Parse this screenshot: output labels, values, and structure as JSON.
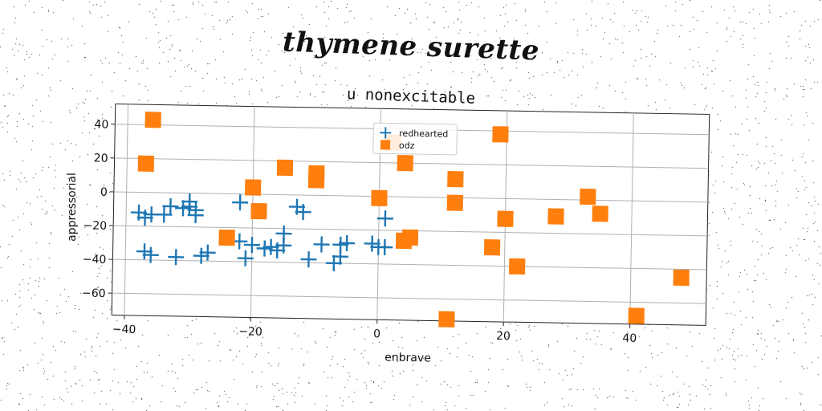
{
  "figure": {
    "suptitle": "thymene surette"
  },
  "chart_data": {
    "type": "scatter",
    "title": "u nonexcitable",
    "xlabel": "enbrave",
    "ylabel": "appressorial",
    "xlim": [
      -42,
      52
    ],
    "ylim": [
      -73,
      52
    ],
    "xticks": [
      -40,
      -20,
      0,
      20,
      40
    ],
    "yticks": [
      -60,
      -40,
      -20,
      0,
      20,
      40
    ],
    "grid": true,
    "legend_position": "top-center",
    "series": [
      {
        "name": "redhearted",
        "marker": "plus",
        "color": "#1f77b4",
        "points": [
          [
            -38,
            -12
          ],
          [
            -37,
            -15
          ],
          [
            -36,
            -13
          ],
          [
            -37,
            -35
          ],
          [
            -36,
            -37
          ],
          [
            -34,
            -13
          ],
          [
            -33,
            -8
          ],
          [
            -32,
            -38
          ],
          [
            -31,
            -9
          ],
          [
            -30,
            -8
          ],
          [
            -30,
            -5
          ],
          [
            -29,
            -10
          ],
          [
            -29,
            -13
          ],
          [
            -28,
            -37
          ],
          [
            -27,
            -35
          ],
          [
            -22,
            -28
          ],
          [
            -22,
            -5
          ],
          [
            -21,
            -38
          ],
          [
            -20,
            -30
          ],
          [
            -18,
            -32
          ],
          [
            -17,
            -31
          ],
          [
            -16,
            -33
          ],
          [
            -15,
            -30
          ],
          [
            -15,
            -23
          ],
          [
            -13,
            -7
          ],
          [
            -12,
            -10
          ],
          [
            -11,
            -38
          ],
          [
            -9,
            -29
          ],
          [
            -7,
            -40
          ],
          [
            -6,
            -36
          ],
          [
            -6,
            -29
          ],
          [
            -5,
            -28
          ],
          [
            -1,
            -28
          ],
          [
            0,
            -30
          ],
          [
            1,
            -13
          ],
          [
            1,
            -30
          ]
        ]
      },
      {
        "name": "odz",
        "marker": "square",
        "color": "#ff7f0e",
        "points": [
          [
            -36,
            43
          ],
          [
            -37,
            17
          ],
          [
            -20,
            4
          ],
          [
            -19,
            -10
          ],
          [
            -15,
            16
          ],
          [
            -10,
            9
          ],
          [
            -10,
            13
          ],
          [
            -24,
            -26
          ],
          [
            0,
            -1
          ],
          [
            4,
            -26
          ],
          [
            5,
            -24
          ],
          [
            4,
            20
          ],
          [
            11,
            -72
          ],
          [
            12,
            11
          ],
          [
            12,
            -3
          ],
          [
            19,
            38
          ],
          [
            18,
            -29
          ],
          [
            20,
            -12
          ],
          [
            22,
            -40
          ],
          [
            28,
            -10
          ],
          [
            33,
            2
          ],
          [
            35,
            -8
          ],
          [
            41,
            -68
          ],
          [
            48,
            -45
          ],
          [
            2,
            32
          ]
        ]
      }
    ]
  }
}
